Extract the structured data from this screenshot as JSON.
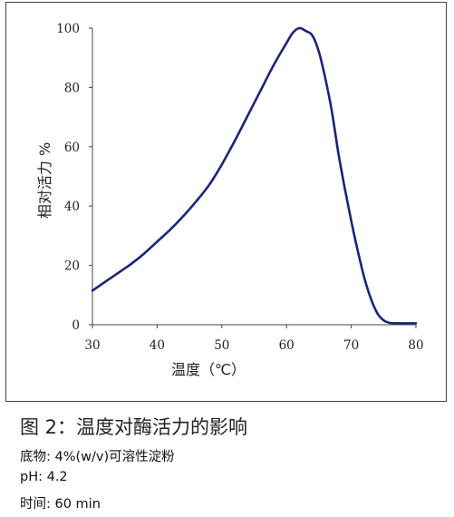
{
  "chart_data": {
    "type": "line",
    "title": "",
    "xlabel": "温度（℃）",
    "ylabel": "相对活力 %",
    "xlim": [
      30,
      80
    ],
    "ylim": [
      0,
      100
    ],
    "x_ticks": [
      "30",
      "40",
      "50",
      "60",
      "70",
      "80"
    ],
    "y_ticks": [
      "0",
      "20",
      "40",
      "60",
      "80",
      "100"
    ],
    "grid": false,
    "line_color": "#1a237e",
    "series": [
      {
        "x": [
          30,
          32,
          34,
          36,
          38,
          40,
          42,
          44,
          46,
          48,
          50,
          52,
          54,
          56,
          58,
          60,
          61,
          62,
          63,
          64,
          65,
          66,
          67,
          68,
          69,
          70,
          71,
          72,
          73,
          74,
          75,
          76,
          77,
          78,
          79,
          80
        ],
        "y": [
          11.5,
          14.5,
          17.5,
          20.5,
          24,
          28,
          32,
          36.5,
          41.5,
          47,
          54,
          62,
          70.5,
          79,
          87.5,
          95,
          98.5,
          100,
          99,
          97.5,
          92,
          83,
          72,
          58,
          46,
          35,
          25,
          16,
          9,
          4,
          1.5,
          0.6,
          0.5,
          0.5,
          0.5,
          0.5
        ]
      }
    ]
  },
  "caption": "图 2：温度对酶活力的影响",
  "notes": [
    "底物: 4%(w/v)可溶性淀粉",
    "pH: 4.2",
    "时间: 60 min"
  ]
}
